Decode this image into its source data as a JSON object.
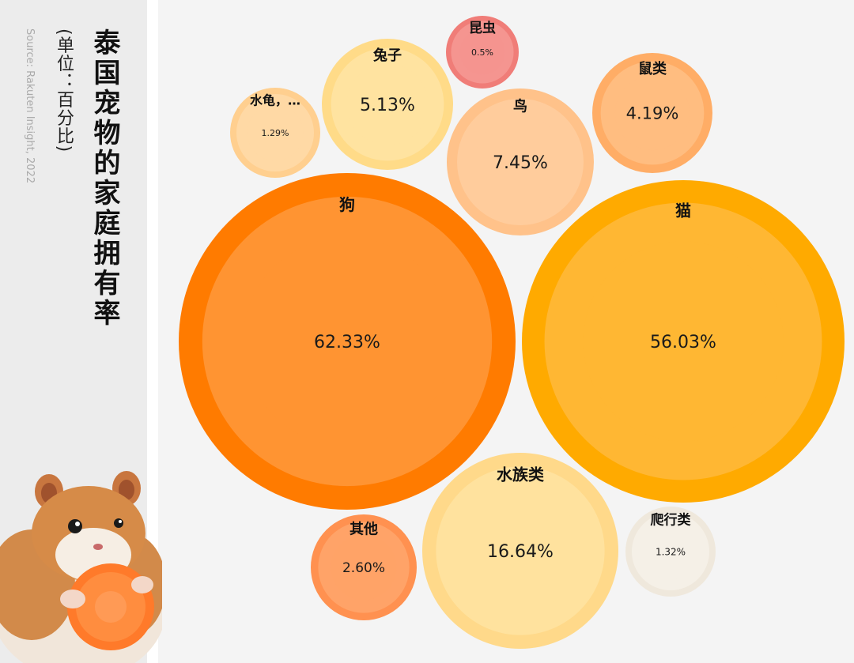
{
  "header": {
    "title": "泰国宠物的家庭拥有率",
    "unit": "(单位：百分比)",
    "source": "Source: Rakuten Insight, 2022"
  },
  "chart_data": {
    "type": "bubble",
    "title": "泰国宠物的家庭拥有率",
    "unit": "(单位：百分比)",
    "items": [
      {
        "name": "狗",
        "value": 62.33,
        "display": "62.33%",
        "outer": "#ff7b00",
        "inner": "#ff9432"
      },
      {
        "name": "猫",
        "value": 56.03,
        "display": "56.03%",
        "outer": "#ffaa00",
        "inner": "#ffb733"
      },
      {
        "name": "水族类",
        "value": 16.64,
        "display": "16.64%",
        "outer": "#ffd98a",
        "inner": "#ffe29e"
      },
      {
        "name": "鸟",
        "value": 7.45,
        "display": "7.45%",
        "outer": "#ffc28a",
        "inner": "#ffcc9c"
      },
      {
        "name": "兔子",
        "value": 5.13,
        "display": "5.13%",
        "outer": "#ffdb88",
        "inner": "#ffe3a0"
      },
      {
        "name": "鼠类",
        "value": 4.19,
        "display": "4.19%",
        "outer": "#ffad66",
        "inner": "#ffbd80"
      },
      {
        "name": "其他",
        "value": 2.6,
        "display": "2.60%",
        "outer": "#ff9150",
        "inner": "#ffa368"
      },
      {
        "name": "爬行类",
        "value": 1.32,
        "display": "1.32%",
        "outer": "#efe8dc",
        "inner": "#f5f0e7"
      },
      {
        "name": "水龟，…",
        "value": 1.29,
        "display": "1.29%",
        "outer": "#ffcf8f",
        "inner": "#ffd9a5"
      },
      {
        "name": "昆虫",
        "value": 0.5,
        "display": "0.5%",
        "outer": "#f07d78",
        "inner": "#f59590"
      }
    ]
  }
}
